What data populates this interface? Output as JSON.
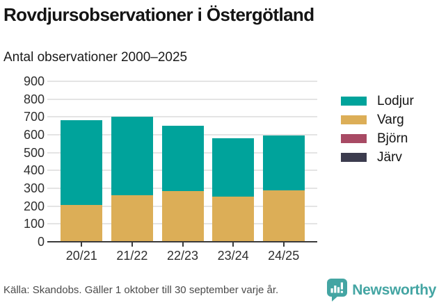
{
  "chart_data": {
    "type": "bar",
    "stacked": true,
    "title": "Rovdjursobservationer i Östergötland",
    "subtitle": "Antal observationer 2000–2025",
    "categories": [
      "20/21",
      "21/22",
      "22/23",
      "23/24",
      "24/25"
    ],
    "series": [
      {
        "name": "Lodjur",
        "color": "#00a39b",
        "values": [
          475,
          440,
          365,
          325,
          305
        ]
      },
      {
        "name": "Varg",
        "color": "#dcae57",
        "values": [
          205,
          260,
          285,
          255,
          290
        ]
      },
      {
        "name": "Björn",
        "color": "#a84a64",
        "values": [
          0,
          0,
          0,
          0,
          0
        ]
      },
      {
        "name": "Järv",
        "color": "#3c3c4e",
        "values": [
          0,
          0,
          0,
          0,
          0
        ]
      }
    ],
    "stack_bottom_to_top": [
      "Järv",
      "Björn",
      "Varg",
      "Lodjur"
    ],
    "ylim": [
      0,
      900
    ],
    "ytick_step": 100,
    "yticks": [
      0,
      100,
      200,
      300,
      400,
      500,
      600,
      700,
      800,
      900
    ],
    "grid": true,
    "legend_position": "right"
  },
  "footer": {
    "source": "Källa: Skandobs. Gäller 1 oktober till 30 september varje år.",
    "brand": "Newsworthy",
    "brand_color": "#44a5a3"
  }
}
